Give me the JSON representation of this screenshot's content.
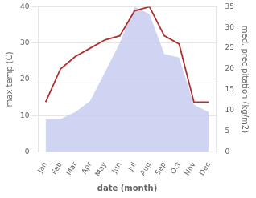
{
  "chart_data": {
    "type": "line",
    "xlabel": "date (month)",
    "ylabel": "max temp (C)",
    "y2label": "med. precipitation (kg/m2)",
    "categories": [
      "Jan",
      "Feb",
      "Mar",
      "Apr",
      "May",
      "Jun",
      "Jul",
      "Aug",
      "Sep",
      "Oct",
      "Nov",
      "Dec"
    ],
    "series": [
      {
        "type": "area",
        "color": "#c5cdf0",
        "values": [
          9,
          9,
          11,
          14,
          22,
          30,
          40,
          38,
          27,
          26,
          13,
          11
        ]
      },
      {
        "type": "line",
        "color": "#b03030",
        "axis": "y2",
        "values": [
          12,
          20,
          23,
          25,
          27,
          28,
          34,
          35,
          28,
          26,
          12,
          12
        ]
      }
    ],
    "ylim": [
      0,
      40
    ],
    "yticks": [
      0,
      10,
      20,
      30,
      40
    ],
    "y2lim": [
      0,
      35
    ],
    "y2ticks": [
      0,
      5,
      10,
      15,
      20,
      25,
      30,
      35
    ],
    "grid": true
  }
}
